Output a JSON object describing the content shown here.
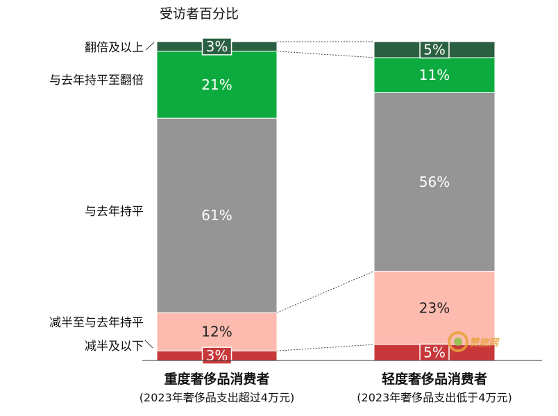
{
  "chart_data": {
    "type": "bar",
    "stacked": true,
    "percent": true,
    "ylabel": "受访者百分比",
    "categories": [
      "重度奢侈品消费者",
      "轻度奢侈品消费者"
    ],
    "category_subtitles": [
      "(2023年奢侈品支出超过4万元)",
      "(2023年奢侈品支出低于4万元)"
    ],
    "series": [
      {
        "name": "减半及以下",
        "values": [
          3,
          5
        ],
        "labels": [
          "3%",
          "5%"
        ],
        "color": "#c8383a"
      },
      {
        "name": "减半至与去年持平",
        "values": [
          12,
          23
        ],
        "labels": [
          "12%",
          "23%"
        ],
        "color": "#fdbbb0"
      },
      {
        "name": "与去年持平",
        "values": [
          61,
          56
        ],
        "labels": [
          "61%",
          "56%"
        ],
        "color": "#959595"
      },
      {
        "name": "与去年持平至翻倍",
        "values": [
          21,
          11
        ],
        "labels": [
          "21%",
          "11%"
        ],
        "color": "#0dab3f"
      },
      {
        "name": "翻倍及以上",
        "values": [
          3,
          5
        ],
        "labels": [
          "3%",
          "5%"
        ],
        "color": "#2a6041"
      }
    ],
    "legend": "left",
    "grid": false,
    "connector_lines": true
  },
  "watermark": {
    "text": "赞旅网",
    "color": "#e8a23a"
  }
}
